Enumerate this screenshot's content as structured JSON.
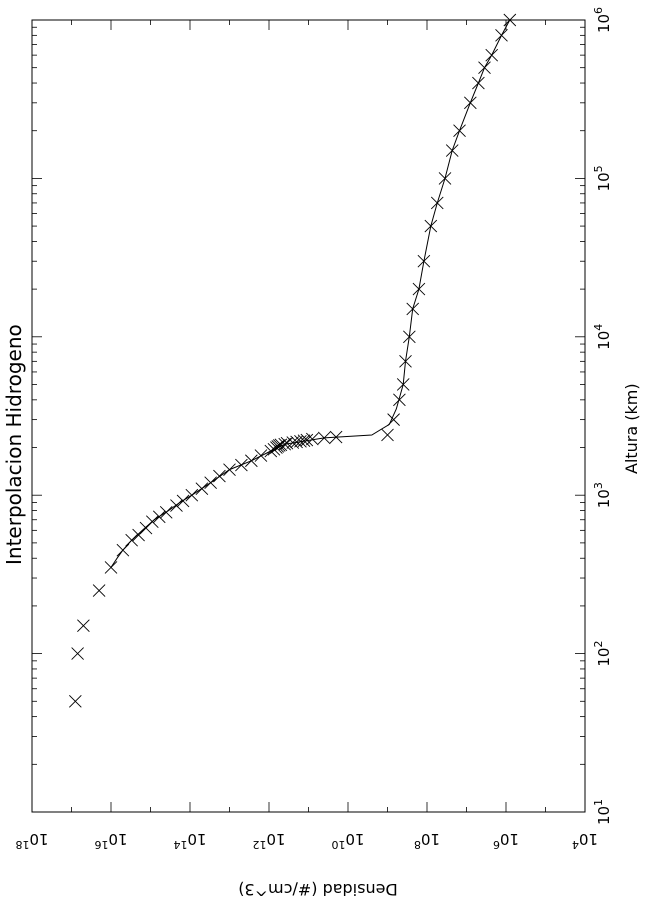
{
  "chart_data": {
    "type": "scatter",
    "title": "Interpolacion Hidrogeno",
    "xlabel": "Altura (km)",
    "ylabel": "Densidad (#/cm^3)",
    "x_scale": "log",
    "y_scale": "log",
    "xlim": [
      10,
      1000000
    ],
    "ylim": [
      10000,
      1000000000000000000
    ],
    "grid": false,
    "legend": "none",
    "x_tick_labels": [
      {
        "base": "10",
        "exp": "1"
      },
      {
        "base": "10",
        "exp": "2"
      },
      {
        "base": "10",
        "exp": "3"
      },
      {
        "base": "10",
        "exp": "4"
      },
      {
        "base": "10",
        "exp": "5"
      },
      {
        "base": "10",
        "exp": "6"
      }
    ],
    "y_tick_labels": [
      {
        "base": "10",
        "exp": "18"
      },
      {
        "base": "10",
        "exp": "16"
      },
      {
        "base": "10",
        "exp": "14"
      },
      {
        "base": "10",
        "exp": "12"
      },
      {
        "base": "10",
        "exp": "10"
      },
      {
        "base": "10",
        "exp": "8"
      },
      {
        "base": "10",
        "exp": "6"
      },
      {
        "base": "10",
        "exp": "4"
      }
    ],
    "series": [
      {
        "marker": "x",
        "points": [
          [
            50,
            8e+16
          ],
          [
            100,
            7e+16
          ],
          [
            150,
            5e+16
          ],
          [
            250,
            2e+16
          ],
          [
            350,
            1e+16
          ],
          [
            450,
            5000000000000000.0
          ],
          [
            520,
            3000000000000000.0
          ],
          [
            560,
            2000000000000000.0
          ],
          [
            620,
            1300000000000000.0
          ],
          [
            680,
            900000000000000.0
          ],
          [
            730,
            600000000000000.0
          ],
          [
            780,
            400000000000000.0
          ],
          [
            860,
            220000000000000.0
          ],
          [
            920,
            150000000000000.0
          ],
          [
            1000,
            90000000000000.0
          ],
          [
            1100,
            50000000000000.0
          ],
          [
            1200,
            30000000000000.0
          ],
          [
            1320,
            18000000000000.0
          ],
          [
            1450,
            10000000000000.0
          ],
          [
            1550,
            5000000000000.0
          ],
          [
            1650,
            2800000000000.0
          ],
          [
            1780,
            1600000000000.0
          ],
          [
            1900,
            900000000000.0
          ],
          [
            1950,
            750000000000.0
          ],
          [
            2000,
            650000000000.0
          ],
          [
            2030,
            600000000000.0
          ],
          [
            2060,
            550000000000.0
          ],
          [
            2080,
            500000000000.0
          ],
          [
            2100,
            400000000000.0
          ],
          [
            2130,
            350000000000.0
          ],
          [
            2150,
            250000000000.0
          ],
          [
            2170,
            200000000000.0
          ],
          [
            2190,
            160000000000.0
          ],
          [
            2210,
            130000000000.0
          ],
          [
            2230,
            110000000000.0
          ],
          [
            2260,
            80000000000.0
          ],
          [
            2300,
            40000000000.0
          ],
          [
            2330,
            20000000000.0
          ],
          [
            2400,
            1000000000.0
          ],
          [
            3000,
            700000000.0
          ],
          [
            4000,
            500000000.0
          ],
          [
            5000,
            400000000.0
          ],
          [
            7000,
            350000000.0
          ],
          [
            10000,
            280000000.0
          ],
          [
            15000,
            230000000.0
          ],
          [
            20000,
            160000000.0
          ],
          [
            30000,
            120000000.0
          ],
          [
            50000,
            80000000.0
          ],
          [
            70000,
            55000000.0
          ],
          [
            100000,
            35000000.0
          ],
          [
            150000,
            23000000.0
          ],
          [
            200000,
            15000000.0
          ],
          [
            300000,
            8000000.0
          ],
          [
            400000,
            5000000.0
          ],
          [
            500000,
            3500000.0
          ],
          [
            600000,
            2300000.0
          ],
          [
            800000,
            1300000.0
          ],
          [
            1000000,
            800000.0
          ]
        ]
      },
      {
        "line": "solid",
        "points": [
          [
            350,
            1e+16
          ],
          [
            400,
            7000000000000000.0
          ],
          [
            450,
            5000000000000000.0
          ],
          [
            520,
            3000000000000000.0
          ],
          [
            600,
            1600000000000000.0
          ],
          [
            700,
            800000000000000.0
          ],
          [
            800,
            350000000000000.0
          ],
          [
            900,
            180000000000000.0
          ],
          [
            1000,
            90000000000000.0
          ],
          [
            1200,
            30000000000000.0
          ],
          [
            1450,
            10000000000000.0
          ],
          [
            1650,
            2800000000000.0
          ],
          [
            1900,
            900000000000.0
          ],
          [
            2100,
            400000000000.0
          ],
          [
            2300,
            40000000000.0
          ],
          [
            2400,
            2500000000.0
          ],
          [
            2800,
            900000000.0
          ],
          [
            3500,
            600000000.0
          ],
          [
            5000,
            400000000.0
          ],
          [
            7000,
            350000000.0
          ],
          [
            10000,
            280000000.0
          ],
          [
            15000,
            230000000.0
          ],
          [
            20000,
            160000000.0
          ],
          [
            30000,
            120000000.0
          ],
          [
            50000,
            80000000.0
          ],
          [
            70000,
            55000000.0
          ],
          [
            100000,
            35000000.0
          ],
          [
            150000,
            23000000.0
          ],
          [
            200000,
            15000000.0
          ],
          [
            300000,
            8000000.0
          ],
          [
            400000,
            5000000.0
          ],
          [
            500000,
            3500000.0
          ],
          [
            600000,
            2300000.0
          ],
          [
            800000,
            1300000.0
          ],
          [
            1000000,
            800000.0
          ]
        ]
      }
    ]
  }
}
